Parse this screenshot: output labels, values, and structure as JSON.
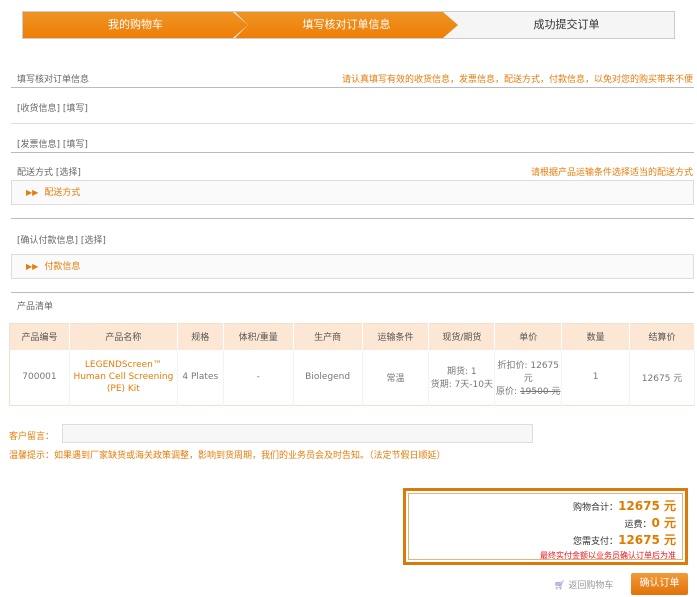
{
  "steps": [
    "我的购物车",
    "填写核对订单信息",
    "成功提交订单"
  ],
  "section_title": "填写核对订单信息",
  "section_hint": "请认真填写有效的收货信息，发票信息，配送方式，付款信息，以免对您的购买带来不便",
  "shipping_info": {
    "label": "[收货信息]",
    "action": "[填写]"
  },
  "invoice_info": {
    "label": "[发票信息]",
    "action": "[填写]"
  },
  "delivery": {
    "label": "配送方式",
    "action": "[选择]",
    "hint": "请根据产品运输条件选择适当的配送方式",
    "box": "配送方式"
  },
  "payment": {
    "label": "[确认付款信息]",
    "action": "[选择]",
    "box": "付款信息"
  },
  "product_list_title": "产品清单",
  "table": {
    "headers": [
      "产品编号",
      "产品名称",
      "规格",
      "体积/重量",
      "生产商",
      "运输条件",
      "现货/期货",
      "单价",
      "数量",
      "结算价"
    ],
    "rows": [
      {
        "id": "700001",
        "name": "LEGENDScreen™ Human Cell Screening (PE) Kit",
        "spec": "4 Plates",
        "volume": "-",
        "maker": "Biolegend",
        "shipping": "常温",
        "stock1": "期货: 1",
        "stock2": "货期: 7天-10天",
        "price1": "折扣价: 12675 元",
        "price2_label": "原价: ",
        "price2": "19500 元",
        "qty": "1",
        "total": "12675 元"
      }
    ]
  },
  "comment": {
    "label": "客户留言：",
    "value": ""
  },
  "notice": "温馨提示：如果遇到厂家缺货或海关政策调整，影响到货周期，我们的业务员会及时告知。（法定节假日顺延）",
  "totals": {
    "subtotal_label": "购物合计：",
    "subtotal": "12675 元",
    "freight_label": "运费：",
    "freight": "0 元",
    "pay_label": "您需支付：",
    "pay": "12675 元",
    "note": "最终实付金额以业务员确认订单后为准"
  },
  "back_to_cart": "返回购物车",
  "confirm": "确认订单",
  "colors": {
    "accent": "#ef7e06",
    "note": "#e8141b"
  }
}
